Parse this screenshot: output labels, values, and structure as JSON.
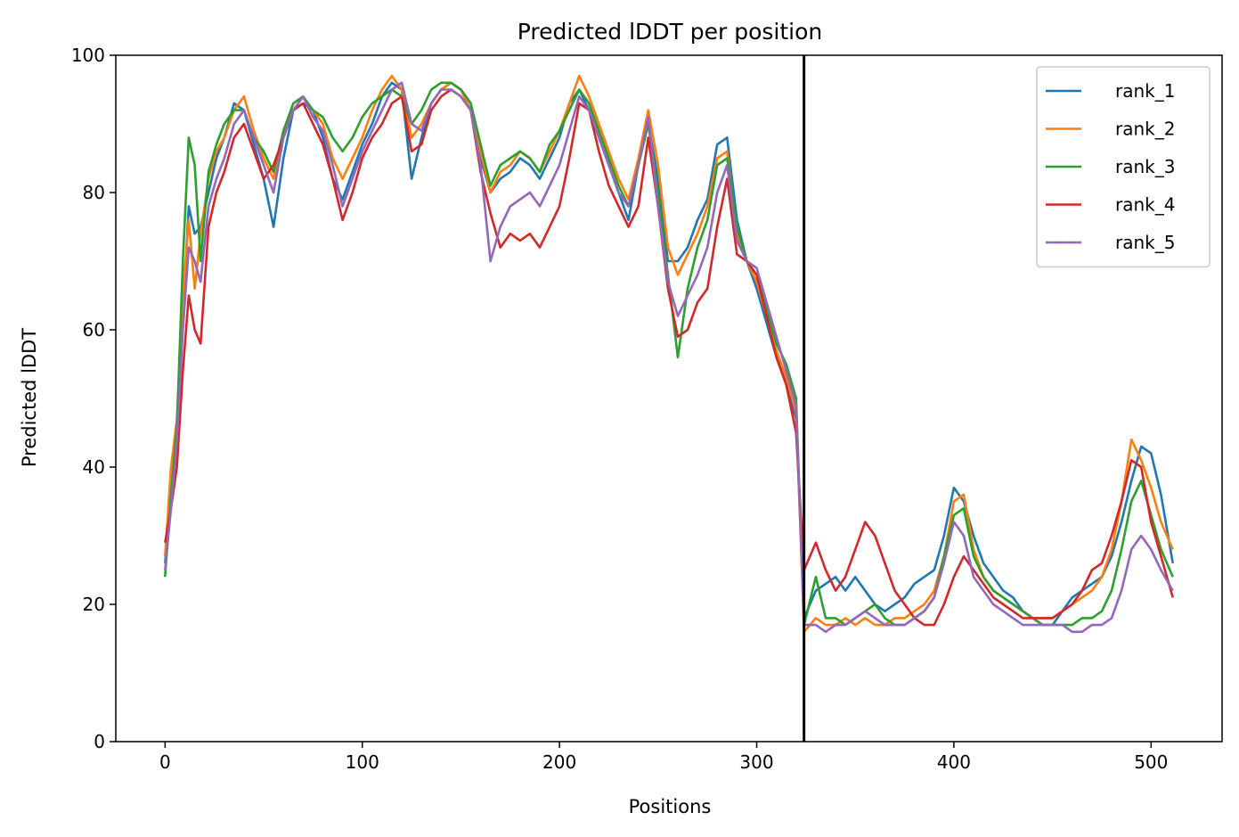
{
  "chart_data": {
    "type": "line",
    "title": "Predicted lDDT per position",
    "xlabel": "Positions",
    "ylabel": "Predicted lDDT",
    "xlim": [
      -25,
      536
    ],
    "ylim": [
      0,
      100
    ],
    "x_ticks": [
      0,
      100,
      200,
      300,
      400,
      500
    ],
    "y_ticks": [
      0,
      20,
      40,
      60,
      80,
      100
    ],
    "grid": false,
    "legend_position": "top-right",
    "vline_x": 324,
    "series": [
      {
        "name": "rank_1",
        "color": "#1f77b4",
        "x": [
          0,
          3,
          6,
          9,
          12,
          15,
          18,
          22,
          26,
          30,
          35,
          40,
          45,
          50,
          55,
          60,
          65,
          70,
          75,
          80,
          85,
          90,
          95,
          100,
          105,
          110,
          115,
          120,
          125,
          130,
          135,
          140,
          145,
          150,
          155,
          160,
          165,
          170,
          175,
          180,
          185,
          190,
          195,
          200,
          205,
          210,
          215,
          220,
          225,
          230,
          235,
          240,
          245,
          250,
          255,
          260,
          265,
          270,
          275,
          280,
          285,
          290,
          295,
          300,
          305,
          310,
          315,
          320,
          324,
          330,
          335,
          340,
          345,
          350,
          355,
          360,
          365,
          370,
          375,
          380,
          385,
          390,
          395,
          400,
          405,
          410,
          415,
          420,
          425,
          430,
          435,
          440,
          445,
          450,
          455,
          460,
          465,
          470,
          475,
          480,
          485,
          490,
          495,
          500,
          505,
          511
        ],
        "y": [
          26,
          36,
          45,
          62,
          78,
          74,
          75,
          80,
          85,
          88,
          93,
          92,
          87,
          82,
          75,
          85,
          92,
          93,
          92,
          88,
          82,
          79,
          83,
          87,
          90,
          94,
          96,
          95,
          82,
          88,
          93,
          95,
          96,
          95,
          93,
          85,
          80,
          82,
          83,
          85,
          84,
          82,
          85,
          88,
          93,
          95,
          92,
          88,
          84,
          80,
          76,
          84,
          90,
          82,
          70,
          70,
          72,
          76,
          79,
          87,
          88,
          76,
          70,
          66,
          61,
          56,
          52,
          47,
          18,
          22,
          23,
          24,
          22,
          24,
          22,
          20,
          19,
          20,
          21,
          23,
          24,
          25,
          30,
          37,
          35,
          30,
          26,
          24,
          22,
          21,
          19,
          18,
          17,
          17,
          19,
          21,
          22,
          23,
          24,
          27,
          32,
          38,
          43,
          42,
          36,
          26
        ]
      },
      {
        "name": "rank_2",
        "color": "#ff7f0e",
        "x": [
          0,
          3,
          6,
          9,
          12,
          15,
          18,
          22,
          26,
          30,
          35,
          40,
          45,
          50,
          55,
          60,
          65,
          70,
          75,
          80,
          85,
          90,
          95,
          100,
          105,
          110,
          115,
          120,
          125,
          130,
          135,
          140,
          145,
          150,
          155,
          160,
          165,
          170,
          175,
          180,
          185,
          190,
          195,
          200,
          205,
          210,
          215,
          220,
          225,
          230,
          235,
          240,
          245,
          250,
          255,
          260,
          265,
          270,
          275,
          280,
          285,
          290,
          295,
          300,
          305,
          310,
          315,
          320,
          324,
          330,
          335,
          340,
          345,
          350,
          355,
          360,
          365,
          370,
          375,
          380,
          385,
          390,
          395,
          400,
          405,
          410,
          415,
          420,
          425,
          430,
          435,
          440,
          445,
          450,
          455,
          460,
          465,
          470,
          475,
          480,
          485,
          490,
          495,
          500,
          505,
          511
        ],
        "y": [
          27,
          40,
          47,
          65,
          76,
          66,
          74,
          82,
          86,
          88,
          92,
          94,
          89,
          85,
          82,
          88,
          92,
          94,
          92,
          90,
          85,
          82,
          85,
          88,
          92,
          95,
          97,
          95,
          88,
          90,
          93,
          95,
          96,
          95,
          92,
          86,
          80,
          83,
          84,
          86,
          85,
          83,
          86,
          89,
          93,
          97,
          94,
          90,
          86,
          82,
          79,
          85,
          92,
          84,
          72,
          68,
          71,
          74,
          78,
          85,
          86,
          74,
          70,
          67,
          62,
          57,
          53,
          48,
          16,
          18,
          17,
          17,
          18,
          17,
          18,
          17,
          17,
          18,
          18,
          19,
          20,
          22,
          27,
          35,
          36,
          28,
          24,
          22,
          21,
          20,
          19,
          18,
          18,
          18,
          19,
          20,
          21,
          22,
          24,
          28,
          35,
          44,
          41,
          37,
          32,
          28
        ]
      },
      {
        "name": "rank_3",
        "color": "#2ca02c",
        "x": [
          0,
          3,
          6,
          9,
          12,
          15,
          18,
          22,
          26,
          30,
          35,
          40,
          45,
          50,
          55,
          60,
          65,
          70,
          75,
          80,
          85,
          90,
          95,
          100,
          105,
          110,
          115,
          120,
          125,
          130,
          135,
          140,
          145,
          150,
          155,
          160,
          165,
          170,
          175,
          180,
          185,
          190,
          195,
          200,
          205,
          210,
          215,
          220,
          225,
          230,
          235,
          240,
          245,
          250,
          255,
          260,
          265,
          270,
          275,
          280,
          285,
          290,
          295,
          300,
          305,
          310,
          315,
          320,
          324,
          330,
          335,
          340,
          345,
          350,
          355,
          360,
          365,
          370,
          375,
          380,
          385,
          390,
          395,
          400,
          405,
          410,
          415,
          420,
          425,
          430,
          435,
          440,
          445,
          450,
          455,
          460,
          465,
          470,
          475,
          480,
          485,
          490,
          495,
          500,
          505,
          511
        ],
        "y": [
          24,
          36,
          46,
          70,
          88,
          84,
          70,
          83,
          87,
          90,
          92,
          92,
          88,
          86,
          83,
          89,
          93,
          94,
          92,
          91,
          88,
          86,
          88,
          91,
          93,
          94,
          95,
          94,
          90,
          92,
          95,
          96,
          96,
          95,
          93,
          87,
          81,
          84,
          85,
          86,
          85,
          83,
          87,
          89,
          92,
          95,
          93,
          89,
          85,
          81,
          78,
          84,
          90,
          80,
          68,
          56,
          66,
          72,
          76,
          84,
          85,
          75,
          70,
          68,
          63,
          58,
          55,
          50,
          17,
          24,
          18,
          18,
          17,
          18,
          19,
          20,
          18,
          17,
          17,
          18,
          19,
          21,
          27,
          33,
          34,
          27,
          24,
          22,
          21,
          20,
          19,
          18,
          17,
          17,
          17,
          17,
          18,
          18,
          19,
          22,
          28,
          35,
          38,
          33,
          28,
          24
        ]
      },
      {
        "name": "rank_4",
        "color": "#d62728",
        "x": [
          0,
          3,
          6,
          9,
          12,
          15,
          18,
          22,
          26,
          30,
          35,
          40,
          45,
          50,
          55,
          60,
          65,
          70,
          75,
          80,
          85,
          90,
          95,
          100,
          105,
          110,
          115,
          120,
          125,
          130,
          135,
          140,
          145,
          150,
          155,
          160,
          165,
          170,
          175,
          180,
          185,
          190,
          195,
          200,
          205,
          210,
          215,
          220,
          225,
          230,
          235,
          240,
          245,
          250,
          255,
          260,
          265,
          270,
          275,
          280,
          285,
          290,
          295,
          300,
          305,
          310,
          315,
          320,
          324,
          330,
          335,
          340,
          345,
          350,
          355,
          360,
          365,
          370,
          375,
          380,
          385,
          390,
          395,
          400,
          405,
          410,
          415,
          420,
          425,
          430,
          435,
          440,
          445,
          450,
          455,
          460,
          465,
          470,
          475,
          480,
          485,
          490,
          495,
          500,
          505,
          511
        ],
        "y": [
          29,
          34,
          40,
          54,
          65,
          60,
          58,
          75,
          80,
          83,
          88,
          90,
          86,
          82,
          84,
          88,
          92,
          93,
          90,
          87,
          82,
          76,
          80,
          85,
          88,
          90,
          93,
          94,
          86,
          87,
          92,
          94,
          95,
          94,
          92,
          83,
          77,
          72,
          74,
          73,
          74,
          72,
          75,
          78,
          85,
          93,
          92,
          86,
          81,
          78,
          75,
          78,
          88,
          78,
          66,
          59,
          60,
          64,
          66,
          75,
          82,
          71,
          70,
          68,
          62,
          56,
          52,
          45,
          25,
          29,
          25,
          22,
          24,
          28,
          32,
          30,
          26,
          22,
          20,
          18,
          17,
          17,
          20,
          24,
          27,
          25,
          23,
          21,
          20,
          19,
          18,
          18,
          18,
          18,
          19,
          20,
          22,
          25,
          26,
          30,
          35,
          41,
          40,
          32,
          27,
          21
        ]
      },
      {
        "name": "rank_5",
        "color": "#9467bd",
        "x": [
          0,
          3,
          6,
          9,
          12,
          15,
          18,
          22,
          26,
          30,
          35,
          40,
          45,
          50,
          55,
          60,
          65,
          70,
          75,
          80,
          85,
          90,
          95,
          100,
          105,
          110,
          115,
          120,
          125,
          130,
          135,
          140,
          145,
          150,
          155,
          160,
          165,
          170,
          175,
          180,
          185,
          190,
          195,
          200,
          205,
          210,
          215,
          220,
          225,
          230,
          235,
          240,
          245,
          250,
          255,
          260,
          265,
          270,
          275,
          280,
          285,
          290,
          295,
          300,
          305,
          310,
          315,
          320,
          324,
          330,
          335,
          340,
          345,
          350,
          355,
          360,
          365,
          370,
          375,
          380,
          385,
          390,
          395,
          400,
          405,
          410,
          415,
          420,
          425,
          430,
          435,
          440,
          445,
          450,
          455,
          460,
          465,
          470,
          475,
          480,
          485,
          490,
          495,
          500,
          505,
          511
        ],
        "y": [
          25,
          34,
          44,
          60,
          72,
          70,
          67,
          78,
          82,
          85,
          90,
          92,
          88,
          84,
          80,
          88,
          92,
          94,
          91,
          89,
          84,
          78,
          82,
          86,
          89,
          92,
          95,
          96,
          90,
          89,
          93,
          95,
          95,
          94,
          92,
          84,
          70,
          75,
          78,
          79,
          80,
          78,
          81,
          84,
          89,
          94,
          92,
          88,
          84,
          80,
          78,
          84,
          91,
          78,
          67,
          62,
          65,
          68,
          72,
          80,
          84,
          73,
          70,
          69,
          64,
          59,
          54,
          49,
          17,
          17,
          16,
          17,
          17,
          18,
          19,
          18,
          17,
          17,
          17,
          18,
          19,
          21,
          26,
          32,
          30,
          24,
          22,
          20,
          19,
          18,
          17,
          17,
          17,
          17,
          17,
          16,
          16,
          17,
          17,
          18,
          22,
          28,
          30,
          28,
          25,
          22
        ]
      }
    ]
  }
}
